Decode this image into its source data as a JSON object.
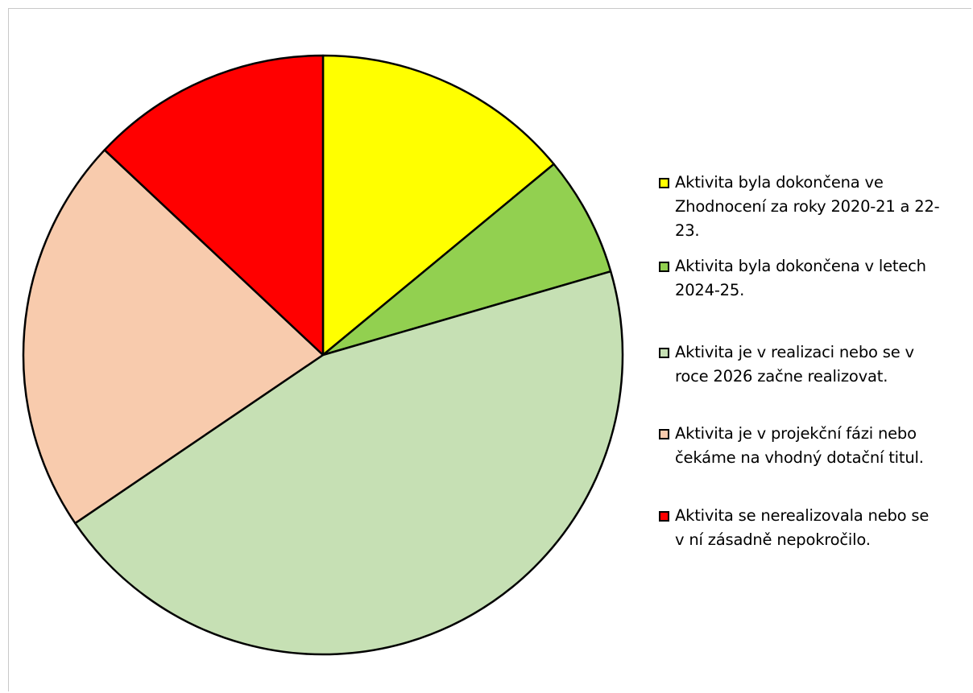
{
  "chart_data": {
    "type": "pie",
    "start_angle_deg": 0,
    "direction": "clockwise",
    "legend_position": "right",
    "slices": [
      {
        "label": "Aktivita byla dokončena ve\nZhodnocení za roky 2020-21 a 22-\n23.",
        "value": 14,
        "color": "#ffff00"
      },
      {
        "label": "Aktivita byla dokončena v letech\n2024-25.",
        "value": 6.5,
        "color": "#92d050"
      },
      {
        "label": "Aktivita je v realizaci nebo se v\nroce 2026 začne realizovat.",
        "value": 45,
        "color": "#c6e0b4"
      },
      {
        "label": "Aktivita je v projekční fázi nebo\nčekáme na vhodný dotační titul.",
        "value": 21.5,
        "color": "#f8cbad"
      },
      {
        "label": "Aktivita se nerealizovala nebo se\nv ní zásadně nepokročilo.",
        "value": 13,
        "color": "#ff0000"
      }
    ]
  }
}
